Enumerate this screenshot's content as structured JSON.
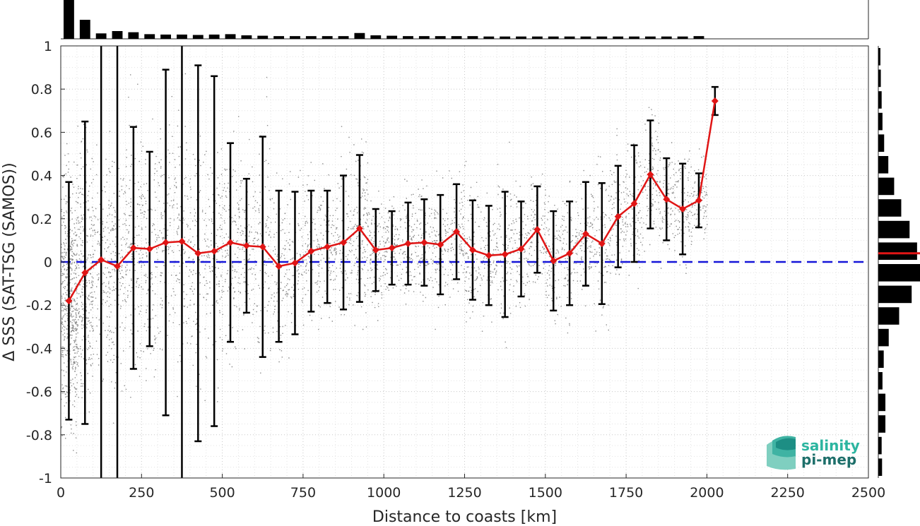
{
  "chart_data": {
    "type": "line",
    "xlabel": "Distance to coasts [km]",
    "ylabel": "Δ SSS (SAT-TSG (SAMOS))",
    "xlim": [
      0,
      2500
    ],
    "ylim": [
      -1,
      1
    ],
    "xticks": [
      0,
      250,
      500,
      750,
      1000,
      1250,
      1500,
      1750,
      2000,
      2250,
      2500
    ],
    "yticks": [
      -1,
      -0.8,
      -0.6,
      -0.4,
      -0.2,
      0,
      0.2,
      0.4,
      0.6,
      0.8,
      1
    ],
    "xtick_labels": [
      "0",
      "250",
      "500",
      "750",
      "1000",
      "1250",
      "1500",
      "1750",
      "2000",
      "2250",
      "2500"
    ],
    "ytick_labels": [
      "-1",
      "-0.8",
      "-0.6",
      "-0.4",
      "-0.2",
      "0",
      "0.2",
      "0.4",
      "0.6",
      "0.8",
      "1"
    ],
    "grid": true,
    "reference_line": {
      "y": 0,
      "style": "dashed",
      "color": "#1515d8"
    },
    "colors": {
      "mean": "#e01515",
      "errorbar": "#000000",
      "scatter": "#808080",
      "hist": "#000000"
    },
    "series": [
      {
        "x": [
          25,
          75,
          125,
          175,
          225,
          275,
          325,
          375,
          425,
          475,
          525,
          575,
          625,
          675,
          725,
          775,
          825,
          875,
          925,
          975,
          1025,
          1075,
          1125,
          1175,
          1225,
          1275,
          1325,
          1375,
          1425,
          1475,
          1525,
          1575,
          1625,
          1675,
          1725,
          1775,
          1825,
          1875,
          1925,
          1975,
          2025
        ],
        "y": [
          -0.18,
          -0.05,
          0.01,
          -0.02,
          0.065,
          0.06,
          0.09,
          0.095,
          0.04,
          0.05,
          0.09,
          0.075,
          0.07,
          -0.02,
          -0.005,
          0.05,
          0.07,
          0.09,
          0.155,
          0.055,
          0.065,
          0.085,
          0.09,
          0.08,
          0.14,
          0.055,
          0.03,
          0.035,
          0.06,
          0.15,
          0.005,
          0.04,
          0.13,
          0.085,
          0.21,
          0.27,
          0.405,
          0.29,
          0.245,
          0.285,
          0.745
        ],
        "std": [
          0.55,
          0.7,
          1.2,
          1.2,
          0.56,
          0.45,
          0.8,
          1.2,
          0.87,
          0.81,
          0.46,
          0.31,
          0.51,
          0.35,
          0.33,
          0.28,
          0.26,
          0.31,
          0.34,
          0.19,
          0.17,
          0.19,
          0.2,
          0.23,
          0.22,
          0.23,
          0.23,
          0.29,
          0.22,
          0.2,
          0.23,
          0.24,
          0.24,
          0.28,
          0.235,
          0.27,
          0.25,
          0.19,
          0.21,
          0.125,
          0.065
        ]
      }
    ],
    "top_histogram": {
      "bins": [
        25,
        75,
        125,
        175,
        225,
        275,
        325,
        375,
        425,
        475,
        525,
        575,
        625,
        675,
        725,
        775,
        825,
        875,
        925,
        975,
        1025,
        1075,
        1125,
        1175,
        1225,
        1275,
        1325,
        1375,
        1425,
        1475,
        1525,
        1575,
        1625,
        1675,
        1725,
        1775,
        1825,
        1875,
        1925,
        1975
      ],
      "relative_counts": [
        1.0,
        0.49,
        0.14,
        0.2,
        0.17,
        0.12,
        0.11,
        0.11,
        0.1,
        0.11,
        0.12,
        0.09,
        0.08,
        0.07,
        0.07,
        0.07,
        0.07,
        0.07,
        0.15,
        0.09,
        0.08,
        0.07,
        0.07,
        0.07,
        0.07,
        0.07,
        0.06,
        0.06,
        0.06,
        0.06,
        0.06,
        0.06,
        0.06,
        0.06,
        0.06,
        0.06,
        0.06,
        0.06,
        0.06,
        0.07
      ]
    },
    "right_histogram": {
      "bin_centers": [
        0.95,
        0.85,
        0.75,
        0.65,
        0.55,
        0.45,
        0.35,
        0.25,
        0.15,
        0.05,
        -0.05,
        -0.15,
        -0.25,
        -0.35,
        -0.45,
        -0.55,
        -0.65,
        -0.75,
        -0.85,
        -0.95
      ],
      "relative_counts": [
        0.05,
        0.06,
        0.08,
        0.1,
        0.14,
        0.24,
        0.38,
        0.55,
        0.75,
        0.93,
        1.0,
        0.8,
        0.5,
        0.25,
        0.13,
        0.1,
        0.17,
        0.17,
        0.08,
        0.09
      ],
      "median": 0.04
    }
  },
  "logo": {
    "line1": "salinity",
    "line2": "pi-mep"
  }
}
